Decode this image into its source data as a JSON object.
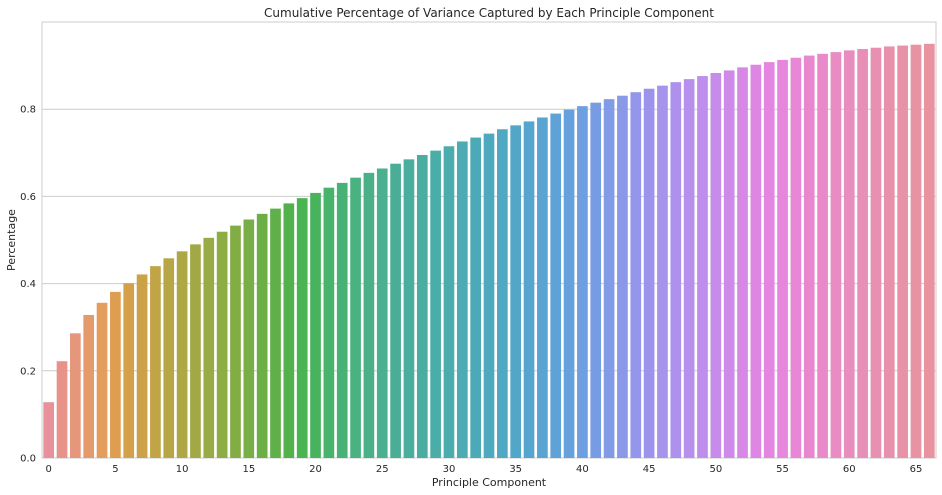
{
  "chart_data": {
    "type": "bar",
    "title": "Cumulative Percentage of Variance Captured by Each Principle Component",
    "xlabel": "Principle Component",
    "ylabel": "Percentage",
    "ylim": [
      0,
      1.0
    ],
    "grid": "horizontal",
    "yticks": [
      0.0,
      0.2,
      0.4,
      0.6,
      0.8
    ],
    "ytick_labels": [
      "0.0",
      "0.2",
      "0.4",
      "0.6",
      "0.8"
    ],
    "xtick_values": [
      0,
      5,
      10,
      15,
      20,
      25,
      30,
      35,
      40,
      45,
      50,
      55,
      60,
      65
    ],
    "xtick_labels": [
      "0",
      "5",
      "10",
      "15",
      "20",
      "25",
      "30",
      "35",
      "40",
      "45",
      "50",
      "55",
      "60",
      "65"
    ],
    "categories": [
      0,
      1,
      2,
      3,
      4,
      5,
      6,
      7,
      8,
      9,
      10,
      11,
      12,
      13,
      14,
      15,
      16,
      17,
      18,
      19,
      20,
      21,
      22,
      23,
      24,
      25,
      26,
      27,
      28,
      29,
      30,
      31,
      32,
      33,
      34,
      35,
      36,
      37,
      38,
      39,
      40,
      41,
      42,
      43,
      44,
      45,
      46,
      47,
      48,
      49,
      50,
      51,
      52,
      53,
      54,
      55,
      56,
      57,
      58,
      59,
      60,
      61,
      62,
      63,
      64,
      65,
      66
    ],
    "values": [
      0.128,
      0.222,
      0.286,
      0.328,
      0.356,
      0.381,
      0.401,
      0.421,
      0.44,
      0.458,
      0.474,
      0.49,
      0.505,
      0.519,
      0.533,
      0.547,
      0.56,
      0.572,
      0.584,
      0.596,
      0.608,
      0.62,
      0.631,
      0.643,
      0.654,
      0.664,
      0.675,
      0.685,
      0.695,
      0.705,
      0.715,
      0.726,
      0.735,
      0.744,
      0.754,
      0.763,
      0.772,
      0.781,
      0.79,
      0.799,
      0.807,
      0.815,
      0.823,
      0.831,
      0.839,
      0.847,
      0.854,
      0.862,
      0.869,
      0.876,
      0.883,
      0.889,
      0.896,
      0.902,
      0.908,
      0.913,
      0.918,
      0.923,
      0.927,
      0.931,
      0.935,
      0.938,
      0.941,
      0.944,
      0.946,
      0.948,
      0.95
    ],
    "colors": [
      "#e8919b",
      "#e8938a",
      "#e6967a",
      "#e59a6c",
      "#e39e5d",
      "#df9e4f",
      "#d5a04a",
      "#cba247",
      "#c1a446",
      "#b7a646",
      "#ada845",
      "#a2a944",
      "#98ab44",
      "#8dac44",
      "#82ac44",
      "#77ae45",
      "#6baf46",
      "#5fb049",
      "#53b14c",
      "#4ab450",
      "#47b45d",
      "#48b36b",
      "#48b276",
      "#49b280",
      "#4ab088",
      "#4ab08f",
      "#4aae96",
      "#4aae9c",
      "#4bada2",
      "#4bada8",
      "#4bacae",
      "#4cabb3",
      "#4caab8",
      "#4ea9be",
      "#50a8c3",
      "#52a7c9",
      "#56a5cf",
      "#5aa4d3",
      "#5fa2d8",
      "#66a0dd",
      "#6e9fe0",
      "#779ce3",
      "#819be6",
      "#8a98e8",
      "#9396ea",
      "#9c94ec",
      "#a593ec",
      "#ae91ec",
      "#b78fec",
      "#bf8deb",
      "#c78bea",
      "#cf89e8",
      "#d787e6",
      "#de86e4",
      "#e385e1",
      "#e686dc",
      "#e787d6",
      "#e788cf",
      "#e88ac9",
      "#e88cc3",
      "#e88dbd",
      "#e88fb7",
      "#e890b2",
      "#e891ad",
      "#e892a8",
      "#e893a3",
      "#e8939f"
    ]
  }
}
